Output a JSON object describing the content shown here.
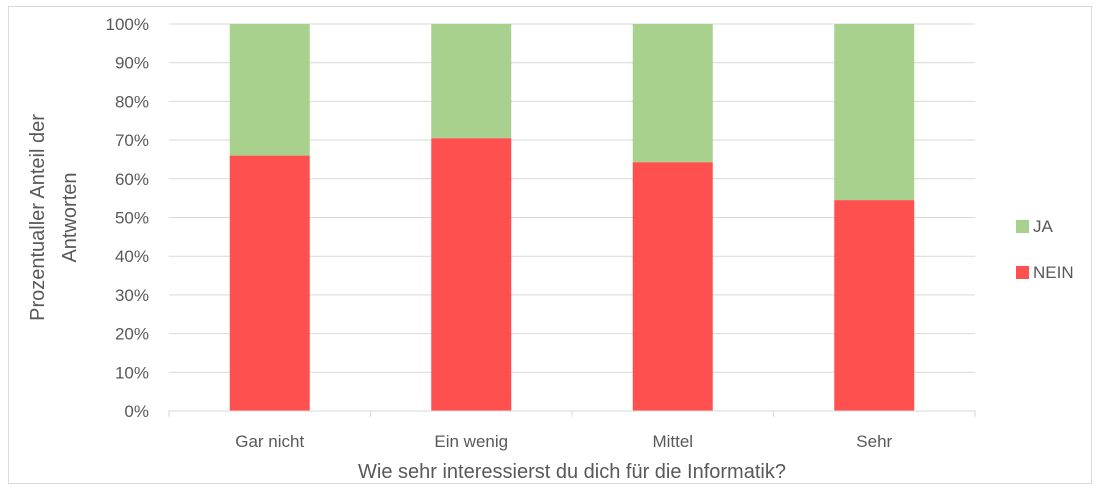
{
  "chart_data": {
    "type": "bar",
    "stacked": true,
    "categories": [
      "Gar nicht",
      "Ein wenig",
      "Mittel",
      "Sehr"
    ],
    "series": [
      {
        "name": "NEIN",
        "color": "#ff5050",
        "values": [
          0.66,
          0.705,
          0.643,
          0.545
        ]
      },
      {
        "name": "JA",
        "color": "#a9d18e",
        "values": [
          0.34,
          0.295,
          0.357,
          0.455
        ]
      }
    ],
    "title": "",
    "xlabel": "Wie sehr interessierst du dich für die Informatik?",
    "ylabel_lines": [
      "Prozentualler Anteil der",
      "Antworten"
    ],
    "yticks": [
      "0%",
      "10%",
      "20%",
      "30%",
      "40%",
      "50%",
      "60%",
      "70%",
      "80%",
      "90%",
      "100%"
    ],
    "ylim": [
      0,
      1
    ],
    "grid": true,
    "legend_position": "right",
    "legend_order": [
      "JA",
      "NEIN"
    ]
  }
}
